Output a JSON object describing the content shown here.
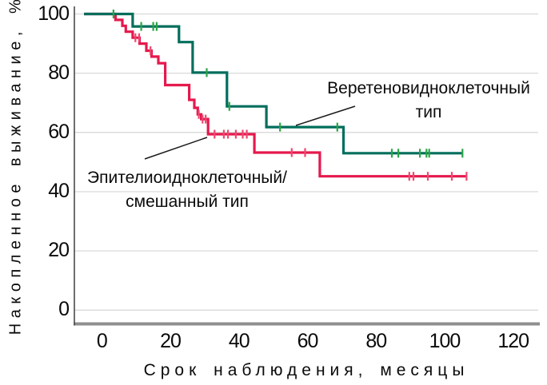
{
  "figure": {
    "background": "#ffffff"
  },
  "colors": {
    "grid": "#d9d9d9",
    "axis_line": "#4a4a4a",
    "bottom_frame": "#8f8f8f",
    "text": "#0a0a0a",
    "annotation_line": "#1a1a1a",
    "green_curve": "#006e5c",
    "green_censor": "#2ba447",
    "red_curve": "#e5194d",
    "red_censor": "#ef476f"
  },
  "chart_data": {
    "type": "line",
    "subtype": "kaplan-meier-step",
    "title": "",
    "xlabel": "Срок наблюдения, месяцы",
    "ylabel": "Накопленное выживание, %",
    "xlim": [
      0,
      120
    ],
    "ylim": [
      0,
      100
    ],
    "grid": "horizontal",
    "legend_position": "inline-annotations",
    "xticks": [
      0,
      20,
      40,
      60,
      80,
      100,
      120
    ],
    "yticks": [
      0,
      20,
      40,
      60,
      80,
      100
    ],
    "series": [
      {
        "name": "Веретеновидноклеточный тип",
        "color": "#006e5c",
        "censor_color": "#2ba447",
        "steps": [
          [
            0,
            100
          ],
          [
            9,
            95.8
          ],
          [
            22.5,
            90.5
          ],
          [
            26.5,
            80.2
          ],
          [
            36.5,
            68.8
          ],
          [
            48,
            61.8
          ],
          [
            70.5,
            53
          ]
        ],
        "end_time": 105.2,
        "final_survival_pct": 53,
        "censor_times": [
          3.4,
          11.5,
          15,
          16,
          30.6,
          37.2,
          52,
          68.7,
          84.6,
          86.5,
          92.8,
          94.7,
          95.5,
          105.2
        ]
      },
      {
        "name": "Эпителиоидноклеточный/смешанный тип",
        "color": "#e5194d",
        "censor_color": "#ef476f",
        "steps": [
          [
            0,
            100
          ],
          [
            4,
            98
          ],
          [
            6,
            96
          ],
          [
            7,
            94
          ],
          [
            9,
            92
          ],
          [
            11,
            90
          ],
          [
            13,
            87.6
          ],
          [
            14.5,
            85.6
          ],
          [
            16.5,
            83.4
          ],
          [
            18.5,
            76
          ],
          [
            25.5,
            71
          ],
          [
            27,
            68.3
          ],
          [
            28,
            66.1
          ],
          [
            29,
            64.5
          ],
          [
            31,
            59.4
          ],
          [
            44.5,
            53.2
          ],
          [
            63.6,
            45.2
          ]
        ],
        "end_time": 106.4,
        "final_survival_pct": 45,
        "censor_times": [
          9.8,
          10.9,
          14.2,
          28.3,
          29.4,
          30.3,
          32.9,
          35.6,
          36.8,
          39.1,
          41.1,
          42.3,
          55.4,
          59.3,
          89.7,
          90.9,
          95.1,
          102.1,
          106.4
        ]
      }
    ],
    "annotations": [
      {
        "target_series": "Веретеновидноклеточный тип",
        "lines": [
          "Веретеновидноклеточный",
          "тип"
        ]
      },
      {
        "target_series": "Эпителиоидноклеточный/смешанный тип",
        "lines": [
          "Эпителиоидноклеточный/",
          "смешанный тип"
        ]
      }
    ]
  }
}
